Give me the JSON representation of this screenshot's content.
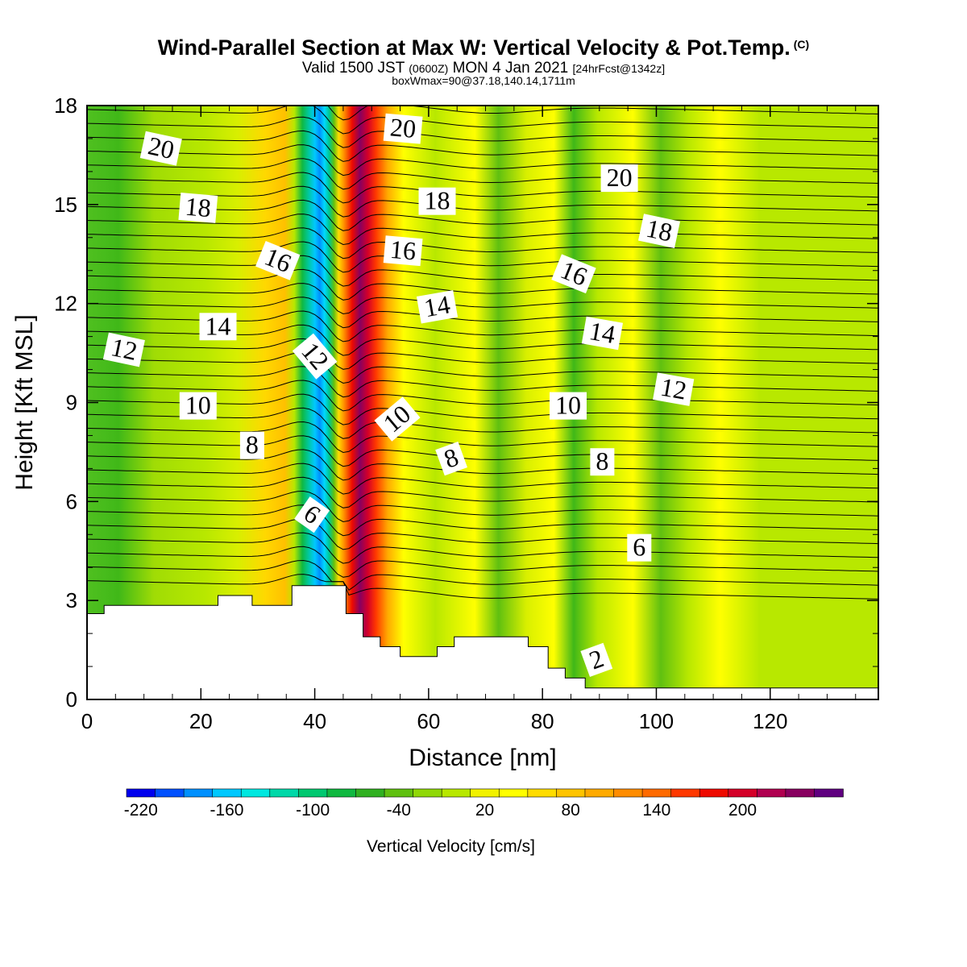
{
  "header": {
    "title": "Wind-Parallel Section at Max W: Vertical Velocity & Pot.Temp.",
    "copyright": "(C)",
    "subtitle_a": "Valid 1500 JST",
    "subtitle_b": "(0600Z)",
    "subtitle_c": "MON 4 Jan 2021",
    "subtitle_d": "[24hrFcst@1342z]",
    "box_info": "boxWmax=90@37.18,140.14,1711m"
  },
  "chart_data": {
    "type": "heatmap",
    "title": "Wind-Parallel Section at Max W: Vertical Velocity & Pot.Temp.",
    "xlabel": "Distance [nm]",
    "ylabel": "Height [Kft MSL]",
    "xlim": [
      0,
      139
    ],
    "ylim": [
      0,
      18
    ],
    "x_ticks": [
      0,
      20,
      40,
      60,
      80,
      100,
      120
    ],
    "y_ticks": [
      0,
      3,
      6,
      9,
      12,
      15,
      18
    ],
    "colorbar": {
      "label": "Vertical Velocity [cm/s]",
      "tick_labels": [
        -220,
        -160,
        -100,
        -40,
        20,
        80,
        140,
        200
      ],
      "levels": [
        -220,
        -200,
        -180,
        -160,
        -140,
        -120,
        -100,
        -80,
        -60,
        -40,
        -20,
        0,
        20,
        40,
        60,
        80,
        100,
        120,
        140,
        160,
        180,
        200,
        220,
        240
      ],
      "colors": [
        "#0000ee",
        "#0050ff",
        "#0090ff",
        "#00c8ff",
        "#00e8e0",
        "#00d8a8",
        "#00c870",
        "#10b840",
        "#30b020",
        "#60c010",
        "#90d808",
        "#b8e800",
        "#f2f200",
        "#ffff00",
        "#ffdc00",
        "#ffc400",
        "#ffaa00",
        "#ff8c00",
        "#ff6a00",
        "#ff3800",
        "#ee0a00",
        "#d40028",
        "#b00050",
        "#880060",
        "#600080"
      ]
    },
    "vertical_velocity_features": [
      {
        "kind": "downdraft",
        "x": 41,
        "peak_cm_s": -200
      },
      {
        "kind": "updraft",
        "x": 50,
        "peak_cm_s": 230
      },
      {
        "kind": "weak updraft",
        "x": 33,
        "peak_cm_s": 60
      },
      {
        "kind": "weak downdraft",
        "x": 73,
        "peak_cm_s": -60
      },
      {
        "kind": "weak downdraft",
        "x": 87,
        "peak_cm_s": -60
      },
      {
        "kind": "weak downdraft",
        "x": 103,
        "peak_cm_s": -40
      },
      {
        "kind": "weak downdraft",
        "x": 6,
        "peak_cm_s": -60
      }
    ],
    "terrain": [
      {
        "x": 0,
        "height": 2.6
      },
      {
        "x": 3,
        "height": 2.6
      },
      {
        "x": 3,
        "height": 2.85
      },
      {
        "x": 23,
        "height": 2.85
      },
      {
        "x": 23,
        "height": 3.15
      },
      {
        "x": 29,
        "height": 3.15
      },
      {
        "x": 29,
        "height": 2.85
      },
      {
        "x": 36,
        "height": 2.85
      },
      {
        "x": 36,
        "height": 3.45
      },
      {
        "x": 45.5,
        "height": 3.45
      },
      {
        "x": 45.5,
        "height": 2.6
      },
      {
        "x": 48.5,
        "height": 2.6
      },
      {
        "x": 48.5,
        "height": 1.9
      },
      {
        "x": 51.5,
        "height": 1.9
      },
      {
        "x": 51.5,
        "height": 1.6
      },
      {
        "x": 55,
        "height": 1.6
      },
      {
        "x": 55,
        "height": 1.3
      },
      {
        "x": 61.5,
        "height": 1.3
      },
      {
        "x": 61.5,
        "height": 1.6
      },
      {
        "x": 64.5,
        "height": 1.6
      },
      {
        "x": 64.5,
        "height": 1.9
      },
      {
        "x": 77.5,
        "height": 1.9
      },
      {
        "x": 77.5,
        "height": 1.6
      },
      {
        "x": 81,
        "height": 1.6
      },
      {
        "x": 81,
        "height": 0.95
      },
      {
        "x": 84,
        "height": 0.95
      },
      {
        "x": 84,
        "height": 0.65
      },
      {
        "x": 87.5,
        "height": 0.65
      },
      {
        "x": 87.5,
        "height": 0.35
      },
      {
        "x": 139,
        "height": 0.35
      }
    ],
    "contour_labels": [
      {
        "text": "20",
        "x": 13,
        "y": 16.7
      },
      {
        "text": "18",
        "x": 19.5,
        "y": 14.9
      },
      {
        "text": "16",
        "x": 33.5,
        "y": 13.3
      },
      {
        "text": "14",
        "x": 23,
        "y": 11.3
      },
      {
        "text": "12",
        "x": 6.5,
        "y": 10.6
      },
      {
        "text": "10",
        "x": 19.5,
        "y": 8.9
      },
      {
        "text": "8",
        "x": 29,
        "y": 7.7
      },
      {
        "text": "12",
        "x": 40,
        "y": 10.4
      },
      {
        "text": "6",
        "x": 39.5,
        "y": 5.6
      },
      {
        "text": "20",
        "x": 55.5,
        "y": 17.3
      },
      {
        "text": "18",
        "x": 61.5,
        "y": 15.1
      },
      {
        "text": "16",
        "x": 55.5,
        "y": 13.6
      },
      {
        "text": "14",
        "x": 61.5,
        "y": 11.9
      },
      {
        "text": "10",
        "x": 54.5,
        "y": 8.5
      },
      {
        "text": "8",
        "x": 64,
        "y": 7.3
      },
      {
        "text": "20",
        "x": 93.5,
        "y": 15.8
      },
      {
        "text": "18",
        "x": 100.5,
        "y": 14.2
      },
      {
        "text": "16",
        "x": 85.5,
        "y": 12.9
      },
      {
        "text": "14",
        "x": 90.5,
        "y": 11.1
      },
      {
        "text": "12",
        "x": 103,
        "y": 9.4
      },
      {
        "text": "10",
        "x": 84.5,
        "y": 8.9
      },
      {
        "text": "8",
        "x": 90.5,
        "y": 7.2
      },
      {
        "text": "6",
        "x": 97,
        "y": 4.6
      },
      {
        "text": "2",
        "x": 89.5,
        "y": 1.2
      }
    ],
    "contour_label_angles": [
      12,
      5,
      22,
      0,
      12,
      0,
      0,
      50,
      35,
      5,
      0,
      5,
      -10,
      -40,
      -20,
      0,
      12,
      22,
      10,
      10,
      0,
      0,
      0,
      -20
    ]
  }
}
